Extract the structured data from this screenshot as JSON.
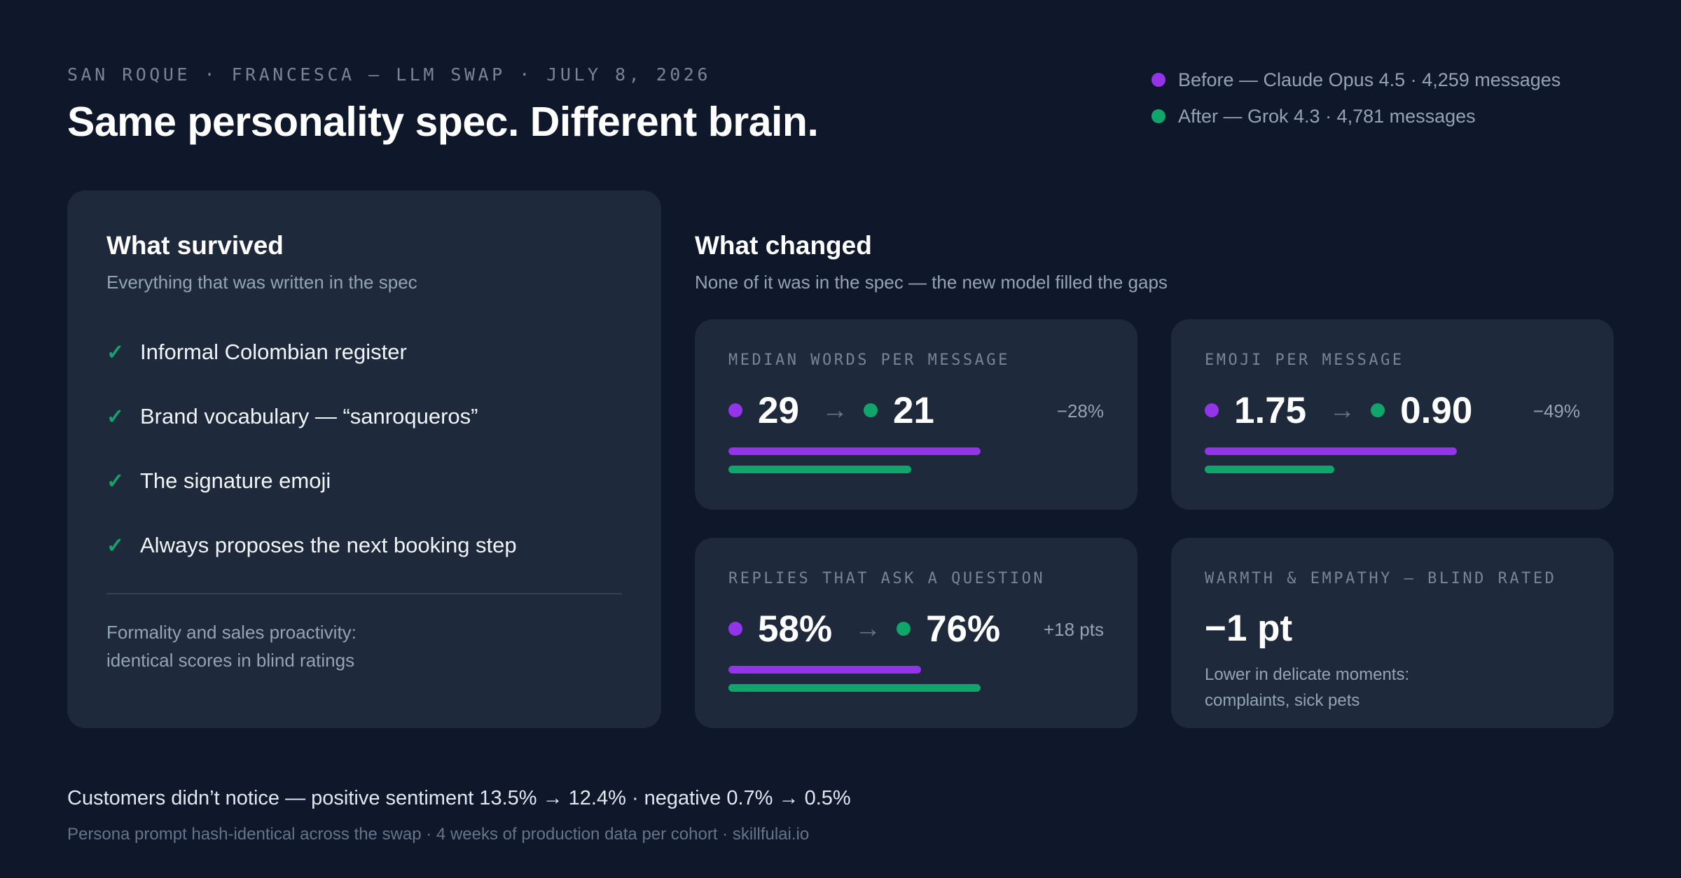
{
  "header": {
    "kicker": "SAN ROQUE · FRANCESCA — LLM SWAP · JULY 8, 2026",
    "title": "Same personality spec. Different brain."
  },
  "legend": [
    {
      "label": "Before — Claude Opus 4.5 · 4,259 messages",
      "color": "#9333ea"
    },
    {
      "label": "After — Grok 4.3 · 4,781 messages",
      "color": "#10a56a"
    }
  ],
  "colors": {
    "before": "#9333ea",
    "after": "#10a56a",
    "background": "#0f172a",
    "card": "#1e293b"
  },
  "survived": {
    "title": "What survived",
    "subtitle": "Everything that was written in the spec",
    "check_icon": "✓",
    "items": [
      "Informal Colombian register",
      "Brand vocabulary — “sanroqueros”",
      "The signature emoji",
      "Always proposes the next booking step"
    ],
    "note_line1": "Formality and sales proactivity:",
    "note_line2": "identical scores in blind ratings"
  },
  "changed": {
    "title": "What changed",
    "subtitle": "None of it was in the spec — the new model filled the gaps",
    "arrow": "→",
    "metrics": [
      {
        "label": "MEDIAN WORDS PER MESSAGE",
        "before": "29",
        "after": "21",
        "delta": "−28%",
        "before_fraction": 1.0,
        "after_fraction": 0.724
      },
      {
        "label": "EMOJI PER MESSAGE",
        "before": "1.75",
        "after": "0.90",
        "delta": "−49%",
        "before_fraction": 1.0,
        "after_fraction": 0.514
      },
      {
        "label": "REPLIES THAT ASK A QUESTION",
        "before": "58%",
        "after": "76%",
        "delta": "+18 pts",
        "before_fraction": 0.763,
        "after_fraction": 1.0
      }
    ],
    "warmth": {
      "label": "WARMTH & EMPATHY — BLIND RATED",
      "value": "−1 pt",
      "note_line1": "Lower in delicate moments:",
      "note_line2": "complaints, sick pets"
    }
  },
  "footer": {
    "main": "Customers didn’t notice — positive sentiment 13.5% → 12.4% · negative 0.7% → 0.5%",
    "sub": "Persona prompt hash-identical across the swap · 4 weeks of production data per cohort · skillfulai.io"
  }
}
